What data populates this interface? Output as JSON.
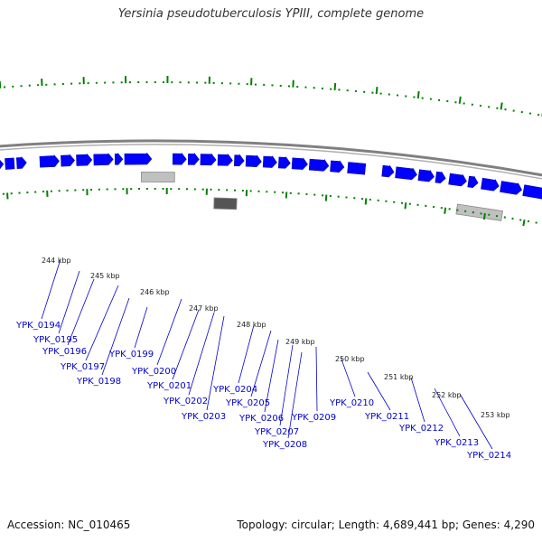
{
  "title": "Yersinia pseudotuberculosis YPIII, complete genome",
  "footer": {
    "accession": "Accession: NC_010465",
    "summary": "Topology: circular; Length: 4,689,441 bp; Genes: 4,290"
  },
  "colors": {
    "background": "#ffffff",
    "backbone": "#808080",
    "gene": "#0000ff",
    "ruler": "#008000",
    "pseudo_light": "#c0c0c0",
    "pseudo_dark": "#555555",
    "label": "#0000cc",
    "tick_label": "#222222"
  },
  "ticks": [
    "244 kbp",
    "245 kbp",
    "246 kbp",
    "247 kbp",
    "248 kbp",
    "249 kbp",
    "250 kbp",
    "251 kbp",
    "252 kbp",
    "253 kbp"
  ],
  "genes": [
    "YPK_0194",
    "YPK_0195",
    "YPK_0196",
    "YPK_0197",
    "YPK_0198",
    "YPK_0199",
    "YPK_0200",
    "YPK_0201",
    "YPK_0202",
    "YPK_0203",
    "YPK_0204",
    "YPK_0205",
    "YPK_0206",
    "YPK_0207",
    "YPK_0208",
    "YPK_0209",
    "YPK_0210",
    "YPK_0211",
    "YPK_0212",
    "YPK_0213",
    "YPK_0214"
  ]
}
